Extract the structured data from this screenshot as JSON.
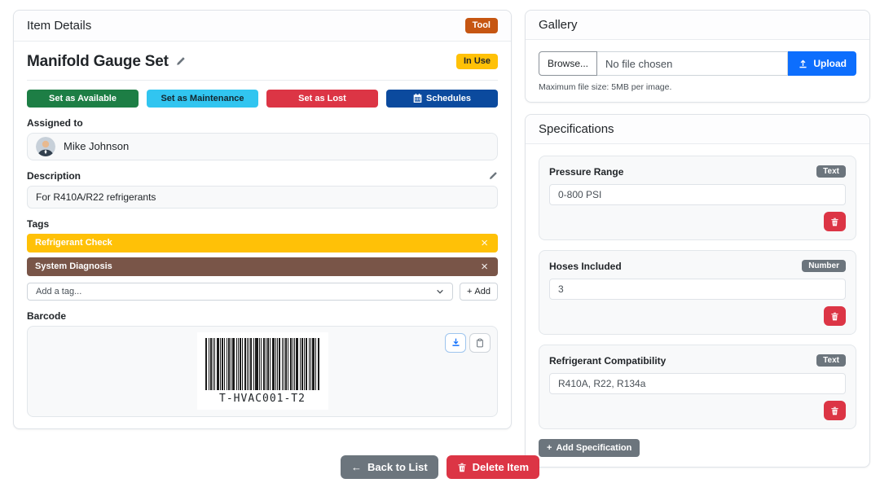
{
  "item_panel": {
    "header": "Item Details",
    "type_badge": "Tool",
    "title": "Manifold Gauge Set",
    "status_badge": "In Use",
    "actions": {
      "available": "Set as Available",
      "maintenance": "Set as Maintenance",
      "lost": "Set as Lost",
      "schedules": "Schedules"
    },
    "assigned_to": {
      "label": "Assigned to",
      "name": "Mike Johnson"
    },
    "description": {
      "label": "Description",
      "value": "For R410A/R22 refrigerants"
    },
    "tags": {
      "label": "Tags",
      "items": [
        {
          "label": "Refrigerant Check",
          "color": "#ffc107"
        },
        {
          "label": "System Diagnosis",
          "color": "#795548"
        }
      ],
      "add_placeholder": "Add a tag...",
      "add_button_label": "Add"
    },
    "barcode": {
      "label": "Barcode",
      "value": "T-HVAC001-T2"
    }
  },
  "gallery": {
    "header": "Gallery",
    "browse_label": "Browse...",
    "file_status": "No file chosen",
    "upload_label": "Upload",
    "helper_text": "Maximum file size: 5MB per image."
  },
  "specifications": {
    "header": "Specifications",
    "items": [
      {
        "name": "Pressure Range",
        "type": "Text",
        "value": "0-800 PSI"
      },
      {
        "name": "Hoses Included",
        "type": "Number",
        "value": "3"
      },
      {
        "name": "Refrigerant Compatibility",
        "type": "Text",
        "value": "R410A, R22, R134a"
      }
    ],
    "add_button_label": "Add Specification"
  },
  "footer": {
    "back_button_label": "Back to List",
    "delete_button_label": "Delete Item"
  },
  "colors": {
    "tool_badge": "#c65612",
    "in_use_badge": "#ffc107",
    "available_button": "#1d7e45",
    "maintenance_button": "#31c5f0",
    "lost_button": "#dc3545",
    "schedules_button": "#0b4a9e",
    "upload_button": "#0d6efd",
    "delete_button": "#dc3545",
    "neutral_button": "#6c757d",
    "tag_refrigerant_check": "#ffc107",
    "tag_system_diagnosis": "#795548"
  }
}
